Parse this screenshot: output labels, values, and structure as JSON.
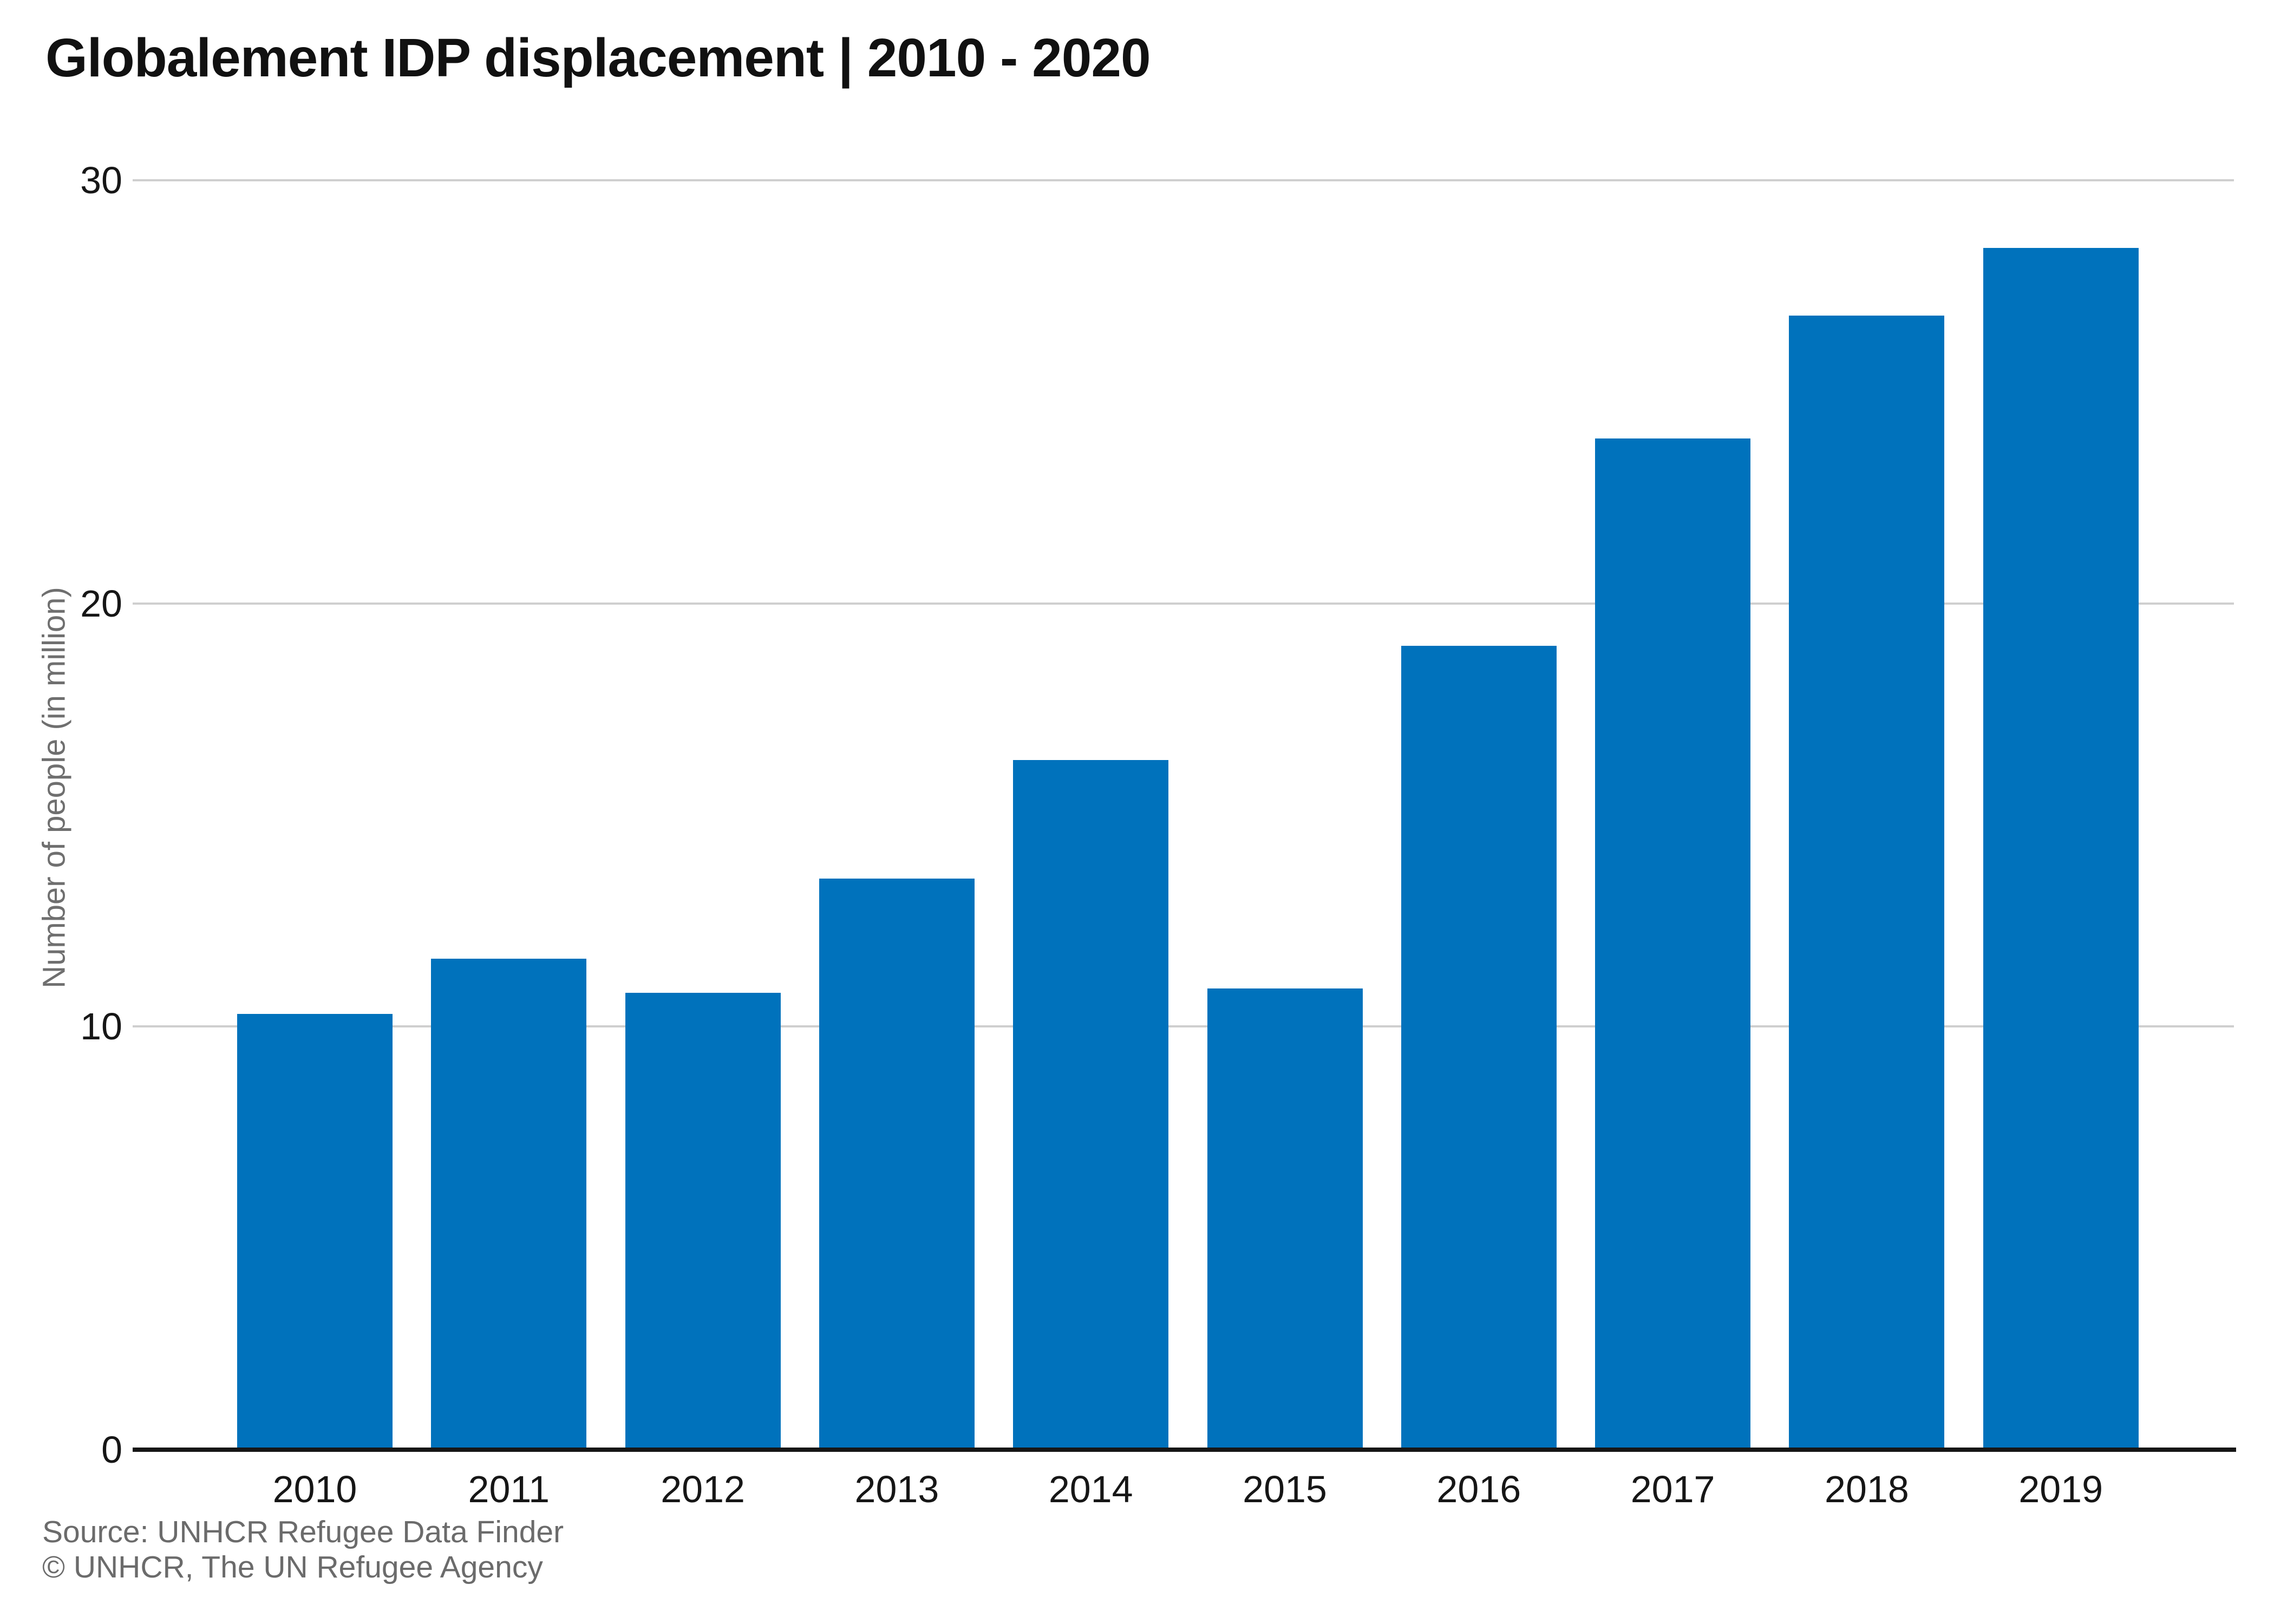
{
  "title": "Globalement IDP displacement | 2010 - 2020",
  "footer": {
    "line1": "Source: UNHCR Refugee Data Finder",
    "line2": "© UNHCR, The UN Refugee Agency"
  },
  "chart_data": {
    "type": "bar",
    "title": "Globalement IDP displacement | 2010 - 2020",
    "xlabel": "",
    "ylabel": "Number of people (in million)",
    "categories": [
      "2010",
      "2011",
      "2012",
      "2013",
      "2014",
      "2015",
      "2016",
      "2017",
      "2018",
      "2019"
    ],
    "values": [
      10.3,
      11.6,
      10.8,
      13.5,
      16.3,
      10.9,
      19.0,
      23.9,
      26.8,
      28.4
    ],
    "ylim": [
      0,
      30
    ],
    "yticks": [
      0,
      10,
      20,
      30
    ],
    "grid": "horizontal",
    "legend_position": "none",
    "bar_color": "#0072bc",
    "gridline_color": "#cfcfcf",
    "axis_line_color": "#161616",
    "tick_label_color": "#161616",
    "secondary_text_color": "#6b6b6b",
    "source": [
      "Source: UNHCR Refugee Data Finder",
      "© UNHCR, The UN Refugee Agency"
    ]
  }
}
